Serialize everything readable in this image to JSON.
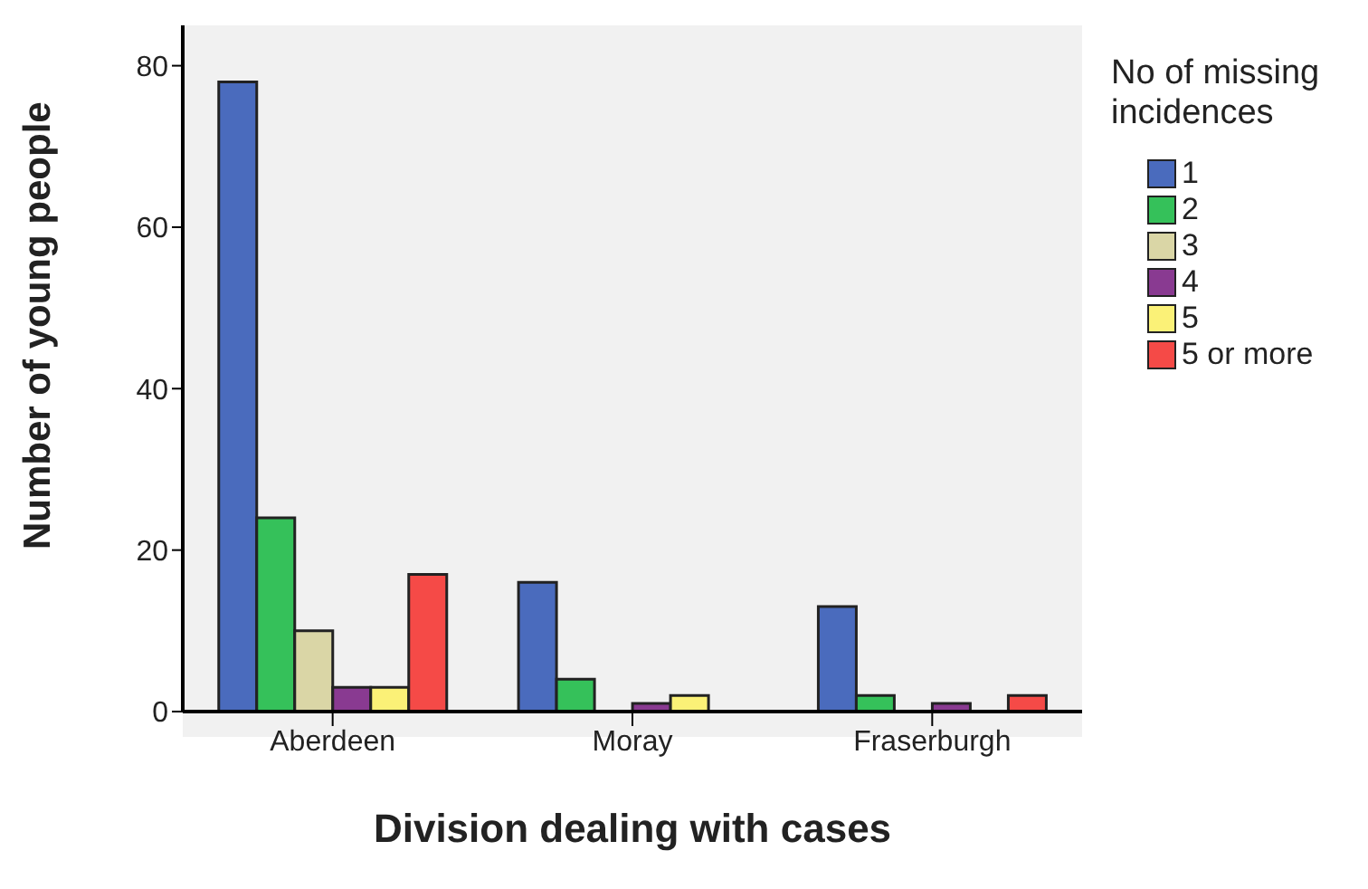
{
  "chart_data": {
    "type": "bar",
    "xlabel": "Division dealing with cases",
    "ylabel": "Number of young people",
    "legend_title": "No of missing incidences",
    "categories": [
      "Aberdeen",
      "Moray",
      "Fraserburgh"
    ],
    "series": [
      {
        "name": "1",
        "color": "#4a6bbd",
        "values": [
          78,
          16,
          13
        ]
      },
      {
        "name": "2",
        "color": "#35c15a",
        "values": [
          24,
          4,
          2
        ]
      },
      {
        "name": "3",
        "color": "#dad6a6",
        "values": [
          10,
          null,
          null
        ]
      },
      {
        "name": "4",
        "color": "#893a91",
        "values": [
          3,
          1,
          1
        ]
      },
      {
        "name": "5",
        "color": "#fbf177",
        "values": [
          3,
          2,
          null
        ]
      },
      {
        "name": "5 or more",
        "color": "#f54a47",
        "values": [
          17,
          null,
          2
        ]
      }
    ],
    "ylim": [
      0,
      85
    ],
    "yticks": [
      0,
      20,
      40,
      60,
      80
    ],
    "grid": false,
    "legend": "right"
  }
}
